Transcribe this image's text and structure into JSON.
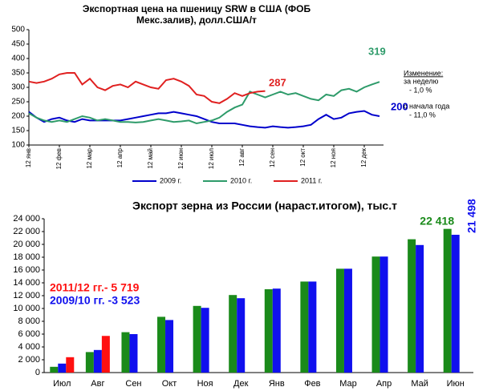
{
  "chart_data": [
    {
      "type": "line",
      "title": [
        "Экспортная цена на пшеницу SRW в США (ФОБ",
        "Мекс.залив), долл.США/т"
      ],
      "categories": [
        "12 янв",
        null,
        null,
        null,
        "12 фев",
        null,
        null,
        null,
        "12 мар",
        null,
        null,
        null,
        "12 апр",
        null,
        null,
        null,
        "12 май",
        null,
        null,
        null,
        "12 июн",
        null,
        null,
        null,
        "12 июл",
        null,
        null,
        null,
        "12 авг",
        null,
        null,
        null,
        "12 сен",
        null,
        null,
        null,
        "12 окт",
        null,
        null,
        null,
        "12 ноя",
        null,
        null,
        null,
        "12 дек",
        null,
        null
      ],
      "series": [
        {
          "name": "2009 г.",
          "color": "#0000cc",
          "values": [
            215,
            195,
            180,
            190,
            195,
            185,
            180,
            190,
            185,
            185,
            185,
            185,
            185,
            190,
            195,
            200,
            205,
            210,
            210,
            215,
            210,
            205,
            200,
            190,
            180,
            175,
            175,
            175,
            170,
            165,
            162,
            160,
            165,
            162,
            160,
            162,
            165,
            170,
            190,
            205,
            190,
            195,
            210,
            215,
            218,
            205,
            200
          ]
        },
        {
          "name": "2010 г.",
          "color": "#2e9b6a",
          "values": [
            210,
            195,
            185,
            180,
            185,
            180,
            190,
            200,
            195,
            185,
            190,
            185,
            180,
            180,
            178,
            180,
            185,
            190,
            185,
            180,
            182,
            185,
            175,
            180,
            185,
            195,
            215,
            230,
            240,
            285,
            275,
            265,
            275,
            285,
            275,
            280,
            270,
            260,
            255,
            275,
            270,
            290,
            295,
            285,
            300,
            310,
            319
          ]
        },
        {
          "name": "2011 г.",
          "color": "#e02020",
          "values": [
            320,
            315,
            320,
            330,
            345,
            350,
            350,
            310,
            330,
            300,
            290,
            305,
            310,
            300,
            320,
            310,
            300,
            295,
            325,
            330,
            320,
            305,
            275,
            270,
            250,
            245,
            260,
            280,
            270,
            280,
            285,
            287,
            null,
            null,
            null,
            null,
            null,
            null,
            null,
            null,
            null,
            null,
            null,
            null,
            null,
            null,
            null
          ]
        }
      ],
      "annotations": [
        "200",
        "319",
        "287",
        "Изменение:",
        "за неделю",
        "- 1,0 %",
        "с начала года",
        "- 11,0 %"
      ],
      "ylim": [
        100,
        500
      ],
      "yticks": [
        100,
        150,
        200,
        250,
        300,
        350,
        400,
        450,
        500
      ],
      "grid": false
    },
    {
      "type": "bar",
      "title": "Экспорт зерна из России (нараст.итогом), тыс.т",
      "categories": [
        "Июл",
        "Авг",
        "Сен",
        "Окт",
        "Ноя",
        "Дек",
        "Янв",
        "Фев",
        "Мар",
        "Апр",
        "Май",
        "Июн"
      ],
      "series": [
        {
          "color": "#1a8a1a",
          "values": [
            900,
            3200,
            6300,
            8700,
            10400,
            12100,
            13000,
            14200,
            16200,
            18100,
            20800,
            22418
          ],
          "value_labels": [
            null,
            null,
            null,
            null,
            null,
            null,
            null,
            null,
            null,
            null,
            null,
            "22 418"
          ]
        },
        {
          "color": "#1010ee",
          "values": [
            1400,
            3523,
            6000,
            8200,
            10100,
            11600,
            13100,
            14200,
            16200,
            18100,
            19900,
            21498
          ],
          "value_labels": [
            null,
            null,
            null,
            null,
            null,
            null,
            null,
            null,
            null,
            null,
            null,
            "21 498"
          ]
        },
        {
          "color": "#ff1010",
          "values": [
            2400,
            5719,
            null,
            null,
            null,
            null,
            null,
            null,
            null,
            null,
            null,
            null
          ]
        }
      ],
      "annotations": [
        "2011/12 гг.- 5 719",
        "2009/10 гг. -3 523"
      ],
      "ylim": [
        0,
        24000
      ],
      "yticks": [
        0,
        {
          "value": 2000,
          "label": "2 000"
        },
        {
          "value": 4000,
          "label": "4 000"
        },
        {
          "value": 6000,
          "label": "6 000"
        },
        {
          "value": 8000,
          "label": "8 000"
        },
        {
          "value": 10000,
          "label": "10 000"
        },
        {
          "value": 12000,
          "label": "12 000"
        },
        {
          "value": 14000,
          "label": "14 000"
        },
        {
          "value": 16000,
          "label": "16 000"
        },
        {
          "value": 18000,
          "label": "18 000"
        },
        {
          "value": 20000,
          "label": "20 000"
        },
        {
          "value": 22000,
          "label": "22 000"
        },
        {
          "value": 24000,
          "label": "24 000"
        }
      ],
      "grid": false
    }
  ]
}
